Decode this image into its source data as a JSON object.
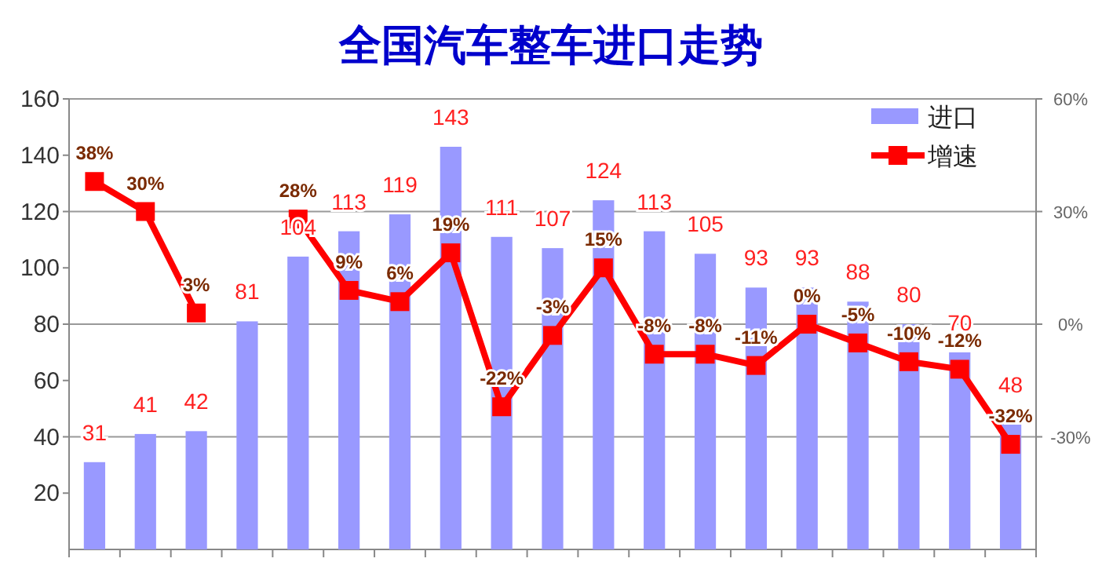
{
  "chart_data": {
    "type": "bar",
    "title": "全国汽车整车进口走势",
    "categories": [
      null,
      null,
      null,
      null,
      null,
      null,
      null,
      null,
      null,
      null,
      null,
      null,
      null,
      null,
      null,
      null,
      null,
      null,
      null
    ],
    "series": [
      {
        "name": "进口",
        "color": "#9999ff",
        "values": [
          31,
          41,
          42,
          81,
          104,
          113,
          119,
          143,
          111,
          107,
          124,
          113,
          105,
          93,
          93,
          88,
          80,
          70,
          48
        ],
        "value_labels": [
          "31",
          "41",
          "42",
          "81",
          "104",
          "113",
          "119",
          "143",
          "111",
          "107",
          "124",
          "113",
          "105",
          "93",
          "93",
          "88",
          "80",
          "70",
          "48"
        ]
      },
      {
        "name": "增速",
        "type": "line",
        "axis": "y2",
        "color": "#ff0000",
        "marker": "square",
        "values": [
          38,
          30,
          3,
          null,
          28,
          9,
          6,
          19,
          -22,
          -3,
          15,
          -8,
          -8,
          -11,
          0,
          -5,
          -10,
          -12,
          -32
        ],
        "value_labels": [
          "38%",
          "30%",
          "3%",
          null,
          "28%",
          "9%",
          "6%",
          "19%",
          "-22%",
          "-3%",
          "15%",
          "-8%",
          "-8%",
          "-11%",
          "0%",
          "-5%",
          "-10%",
          "-12%",
          "-32%"
        ]
      }
    ],
    "ylim": [
      0,
      160
    ],
    "yticks": [
      20,
      40,
      60,
      80,
      100,
      120,
      140,
      160
    ],
    "y2lim": [
      -60,
      60
    ],
    "y2ticks": [
      {
        "value": -30,
        "label": "-30%"
      },
      {
        "value": 0,
        "label": "0%"
      },
      {
        "value": 30,
        "label": "30%"
      },
      {
        "value": 60,
        "label": "60%"
      }
    ],
    "grid": "y2",
    "legend": "top right"
  }
}
